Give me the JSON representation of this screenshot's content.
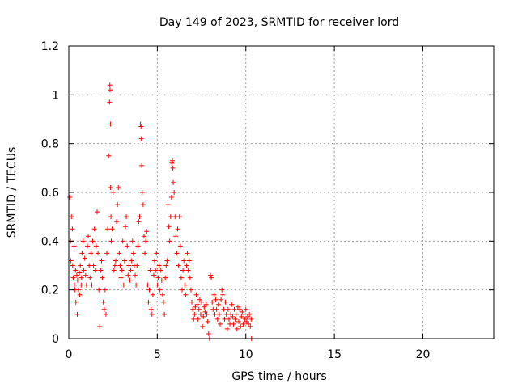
{
  "chart_data": {
    "type": "scatter",
    "title": "Day 149 of 2023, SRMTID for receiver lord",
    "xlabel": "GPS time / hours",
    "ylabel": "SRMTID / TECUs",
    "xlim": [
      0,
      24
    ],
    "ylim": [
      0,
      1.2
    ],
    "xticks": [
      0,
      5,
      10,
      15,
      20
    ],
    "xtick_labels": [
      "0",
      "5",
      "10",
      "15",
      "20"
    ],
    "yticks": [
      0,
      0.2,
      0.4,
      0.6,
      0.8,
      1.0,
      1.2
    ],
    "ytick_labels": [
      "0",
      "0.2",
      "0.4",
      "0.6",
      "0.8",
      "1",
      "1.2"
    ],
    "grid": true,
    "marker": "+",
    "series": [
      {
        "name": "SRMTID",
        "color": "#ff0000",
        "x": [
          0.05,
          0.1,
          0.12,
          0.15,
          0.2,
          0.22,
          0.25,
          0.3,
          0.32,
          0.35,
          0.38,
          0.4,
          0.45,
          0.48,
          0.5,
          0.55,
          0.6,
          0.62,
          0.65,
          0.7,
          0.72,
          0.75,
          0.8,
          0.85,
          0.9,
          0.95,
          1.0,
          1.05,
          1.1,
          1.15,
          1.2,
          1.25,
          1.3,
          1.35,
          1.4,
          1.45,
          1.5,
          1.55,
          1.6,
          1.65,
          1.7,
          1.75,
          1.8,
          1.85,
          1.9,
          1.95,
          2.0,
          2.05,
          2.1,
          2.15,
          2.2,
          2.25,
          2.3,
          2.32,
          2.33,
          2.35,
          2.36,
          2.38,
          2.4,
          2.45,
          2.5,
          2.55,
          2.6,
          2.65,
          2.7,
          2.75,
          2.8,
          2.85,
          2.9,
          2.95,
          3.0,
          3.05,
          3.1,
          3.15,
          3.2,
          3.25,
          3.3,
          3.35,
          3.4,
          3.45,
          3.5,
          3.55,
          3.6,
          3.65,
          3.7,
          3.75,
          3.8,
          3.85,
          3.9,
          3.95,
          4.0,
          4.05,
          4.08,
          4.1,
          4.12,
          4.15,
          4.2,
          4.25,
          4.3,
          4.35,
          4.4,
          4.45,
          4.5,
          4.55,
          4.6,
          4.65,
          4.7,
          4.75,
          4.8,
          4.85,
          4.9,
          4.95,
          5.0,
          5.05,
          5.1,
          5.15,
          5.2,
          5.25,
          5.3,
          5.35,
          5.4,
          5.45,
          5.5,
          5.55,
          5.6,
          5.65,
          5.7,
          5.75,
          5.8,
          5.82,
          5.85,
          5.88,
          5.9,
          5.95,
          6.0,
          6.05,
          6.1,
          6.15,
          6.2,
          6.25,
          6.3,
          6.35,
          6.4,
          6.45,
          6.5,
          6.55,
          6.6,
          6.65,
          6.7,
          6.75,
          6.8,
          6.85,
          6.9,
          6.95,
          7.0,
          7.05,
          7.1,
          7.15,
          7.2,
          7.25,
          7.3,
          7.35,
          7.4,
          7.45,
          7.5,
          7.55,
          7.6,
          7.65,
          7.7,
          7.75,
          7.8,
          7.85,
          7.9,
          7.95,
          8.0,
          8.05,
          8.1,
          8.15,
          8.2,
          8.25,
          8.3,
          8.35,
          8.4,
          8.45,
          8.5,
          8.55,
          8.6,
          8.65,
          8.7,
          8.75,
          8.8,
          8.85,
          8.9,
          8.95,
          9.0,
          9.05,
          9.1,
          9.15,
          9.2,
          9.25,
          9.3,
          9.35,
          9.4,
          9.45,
          9.5,
          9.55,
          9.6,
          9.65,
          9.7,
          9.75,
          9.8,
          9.85,
          9.9,
          9.95,
          10.0,
          10.05,
          10.1,
          10.15,
          10.2,
          10.25,
          10.3,
          10.32
        ],
        "y": [
          0.58,
          0.4,
          0.32,
          0.5,
          0.45,
          0.3,
          0.25,
          0.38,
          0.22,
          0.2,
          0.28,
          0.15,
          0.26,
          0.1,
          0.24,
          0.2,
          0.27,
          0.18,
          0.3,
          0.22,
          0.25,
          0.35,
          0.4,
          0.28,
          0.33,
          0.26,
          0.22,
          0.38,
          0.42,
          0.3,
          0.25,
          0.35,
          0.22,
          0.4,
          0.3,
          0.45,
          0.28,
          0.38,
          0.52,
          0.35,
          0.2,
          0.05,
          0.28,
          0.32,
          0.25,
          0.15,
          0.12,
          0.2,
          0.1,
          0.35,
          0.45,
          0.75,
          0.97,
          1.04,
          1.02,
          0.88,
          0.62,
          0.5,
          0.4,
          0.45,
          0.6,
          0.28,
          0.3,
          0.32,
          0.48,
          0.55,
          0.62,
          0.35,
          0.3,
          0.25,
          0.28,
          0.4,
          0.22,
          0.32,
          0.46,
          0.5,
          0.38,
          0.26,
          0.3,
          0.24,
          0.28,
          0.32,
          0.4,
          0.35,
          0.3,
          0.26,
          0.22,
          0.3,
          0.38,
          0.48,
          0.5,
          0.88,
          0.87,
          0.82,
          0.71,
          0.6,
          0.55,
          0.42,
          0.35,
          0.4,
          0.44,
          0.22,
          0.15,
          0.2,
          0.28,
          0.12,
          0.1,
          0.18,
          0.26,
          0.32,
          0.28,
          0.35,
          0.22,
          0.25,
          0.3,
          0.2,
          0.28,
          0.24,
          0.18,
          0.15,
          0.1,
          0.25,
          0.3,
          0.32,
          0.55,
          0.46,
          0.4,
          0.5,
          0.58,
          0.72,
          0.73,
          0.7,
          0.64,
          0.6,
          0.5,
          0.42,
          0.35,
          0.45,
          0.3,
          0.5,
          0.38,
          0.25,
          0.2,
          0.28,
          0.32,
          0.22,
          0.18,
          0.3,
          0.35,
          0.28,
          0.32,
          0.25,
          0.2,
          0.15,
          0.12,
          0.08,
          0.1,
          0.13,
          0.18,
          0.14,
          0.08,
          0.12,
          0.16,
          0.1,
          0.15,
          0.05,
          0.09,
          0.13,
          0.11,
          0.14,
          0.1,
          0.07,
          0.02,
          0.0,
          0.26,
          0.25,
          0.15,
          0.12,
          0.18,
          0.1,
          0.16,
          0.12,
          0.08,
          0.14,
          0.1,
          0.06,
          0.16,
          0.2,
          0.18,
          0.12,
          0.08,
          0.15,
          0.1,
          0.04,
          0.12,
          0.08,
          0.06,
          0.1,
          0.14,
          0.09,
          0.06,
          0.12,
          0.08,
          0.1,
          0.04,
          0.13,
          0.07,
          0.12,
          0.05,
          0.09,
          0.11,
          0.06,
          0.1,
          0.08,
          0.12,
          0.07,
          0.09,
          0.06,
          0.1,
          0.05,
          0.08,
          0.0
        ]
      }
    ]
  }
}
